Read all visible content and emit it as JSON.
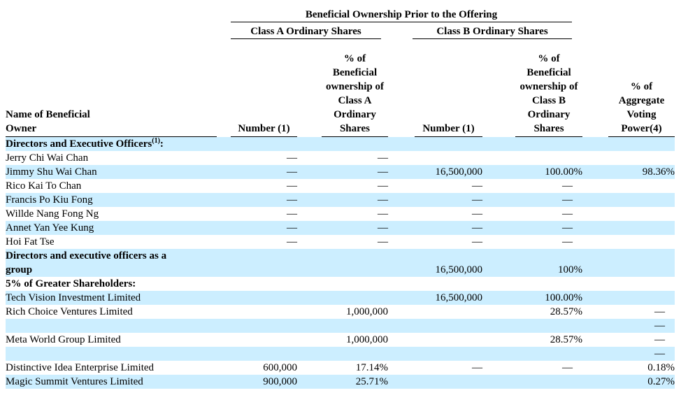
{
  "page": {
    "background": "#ffffff",
    "shaded_row_color": "#cceeff"
  },
  "table": {
    "title": "Beneficial Ownership Prior to the Offering",
    "class_a_group": "Class A Ordinary Shares",
    "class_b_group": "Class B Ordinary Shares",
    "col_headers": {
      "name": "Name of Beneficial\nOwner",
      "a_number": "Number (1)",
      "a_pct": "% of\nBeneficial\nownership of\nClass A\nOrdinary\nShares",
      "b_number": "Number (1)",
      "b_pct": "% of\nBeneficial\nownership of\nClass B\nOrdinary\nShares",
      "agg": "% of\nAggregate\nVoting\nPower(4)"
    },
    "rows": [
      {
        "name": "Directors and Executive Officers",
        "sup": "(1)",
        "suffix": ":",
        "bold": true,
        "shaded": true,
        "cells": [
          "",
          "",
          "",
          "",
          ""
        ]
      },
      {
        "name": "Jerry Chi Wai Chan",
        "bold": false,
        "shaded": false,
        "cells": [
          "—",
          "—",
          "",
          "",
          ""
        ]
      },
      {
        "name": "Jimmy Shu Wai Chan",
        "bold": false,
        "shaded": true,
        "cells": [
          "—",
          "—",
          "16,500,000",
          "100.00%",
          "98.36%"
        ]
      },
      {
        "name": "Rico Kai To Chan",
        "bold": false,
        "shaded": false,
        "cells": [
          "—",
          "—",
          "—",
          "—",
          ""
        ]
      },
      {
        "name": "Francis Po Kiu Fong",
        "bold": false,
        "shaded": true,
        "cells": [
          "—",
          "—",
          "—",
          "—",
          ""
        ]
      },
      {
        "name": "Willde Nang Fong Ng",
        "bold": false,
        "shaded": false,
        "cells": [
          "—",
          "—",
          "—",
          "—",
          ""
        ]
      },
      {
        "name": "Annet Yan Yee Kung",
        "bold": false,
        "shaded": true,
        "cells": [
          "—",
          "—",
          "—",
          "—",
          ""
        ]
      },
      {
        "name": "Hoi Fat Tse",
        "bold": false,
        "shaded": false,
        "cells": [
          "—",
          "—",
          "—",
          "—",
          ""
        ]
      },
      {
        "name": "Directors and executive officers as a\ngroup",
        "bold": true,
        "shaded": true,
        "cells": [
          "",
          "",
          "16,500,000",
          "100%",
          ""
        ]
      },
      {
        "name": "5% of Greater Shareholders:",
        "bold": true,
        "shaded": false,
        "cells": [
          "",
          "",
          "",
          "",
          ""
        ]
      },
      {
        "name": "Tech Vision Investment Limited",
        "bold": false,
        "shaded": true,
        "cells": [
          "",
          "",
          "16,500,000",
          "100.00%",
          ""
        ]
      },
      {
        "name": "Rich Choice Ventures Limited",
        "bold": false,
        "shaded": false,
        "cells": [
          "",
          "1,000,000",
          "",
          "28.57%",
          "—"
        ]
      },
      {
        "name": "",
        "bold": false,
        "shaded": true,
        "cells": [
          "",
          "",
          "",
          "",
          "—"
        ]
      },
      {
        "name": "Meta World Group Limited",
        "bold": false,
        "shaded": false,
        "cells": [
          "",
          "1,000,000",
          "",
          "28.57%",
          "—"
        ]
      },
      {
        "name": "",
        "bold": false,
        "shaded": true,
        "cells": [
          "",
          "",
          "",
          "",
          "—"
        ]
      },
      {
        "name": "Distinctive Idea Enterprise Limited",
        "bold": false,
        "shaded": false,
        "cells": [
          "600,000",
          "17.14%",
          "—",
          "—",
          "0.18%"
        ]
      },
      {
        "name": "Magic Summit Ventures Limited",
        "bold": false,
        "shaded": true,
        "cells": [
          "900,000",
          "25.71%",
          "",
          "",
          "0.27%"
        ]
      }
    ]
  }
}
